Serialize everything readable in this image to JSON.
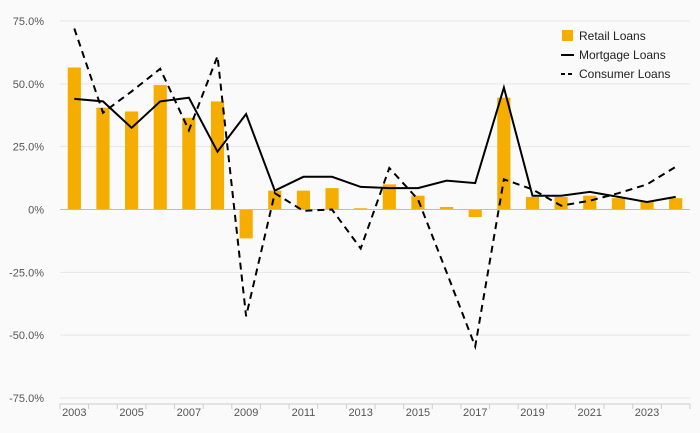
{
  "chart_data": {
    "type": "bar+line",
    "title": "",
    "xlabel": "",
    "ylabel": "",
    "ylim": [
      -75,
      75
    ],
    "y_ticks": [
      75,
      50,
      25,
      0,
      -25,
      -50,
      -75
    ],
    "y_tick_labels": [
      "75.0%",
      "50.0%",
      "25.0%",
      "0%",
      "-25.0%",
      "-50.0%",
      "-75.0%"
    ],
    "x_tick_labels": [
      "2003",
      "2005",
      "2007",
      "2009",
      "2011",
      "2013",
      "2015",
      "2017",
      "2019",
      "2021",
      "2023"
    ],
    "categories": [
      2003,
      2004,
      2005,
      2006,
      2007,
      2008,
      2009,
      2010,
      2011,
      2012,
      2013,
      2014,
      2015,
      2016,
      2017,
      2018,
      2019,
      2020,
      2021,
      2022,
      2023,
      2024
    ],
    "legend_position": "top-right",
    "series": [
      {
        "name": "Retail Loans",
        "kind": "bar",
        "color": "#f5ad00",
        "values": [
          56.5,
          40.5,
          39.0,
          49.5,
          36.5,
          43.0,
          -11.5,
          7.5,
          7.5,
          8.5,
          0.5,
          10.0,
          5.5,
          1.0,
          -3.0,
          44.5,
          5.0,
          5.0,
          5.5,
          4.5,
          3.0,
          4.5
        ]
      },
      {
        "name": "Mortgage Loans",
        "kind": "line",
        "style": "solid",
        "color": "#000000",
        "values": [
          44.0,
          43.0,
          32.5,
          43.0,
          44.5,
          23.0,
          38.0,
          7.5,
          13.0,
          13.0,
          9.0,
          8.5,
          8.5,
          11.5,
          10.5,
          48.5,
          5.5,
          5.5,
          7.0,
          5.0,
          3.0,
          5.0
        ]
      },
      {
        "name": "Consumer Loans",
        "kind": "line",
        "style": "dashed",
        "color": "#000000",
        "values": [
          72.0,
          38.5,
          47.0,
          56.0,
          31.5,
          61.0,
          -42.5,
          6.5,
          -0.5,
          0.0,
          -15.5,
          16.5,
          4.0,
          -25.0,
          -54.5,
          12.0,
          8.0,
          1.5,
          3.5,
          6.5,
          10.0,
          17.0
        ]
      }
    ]
  }
}
